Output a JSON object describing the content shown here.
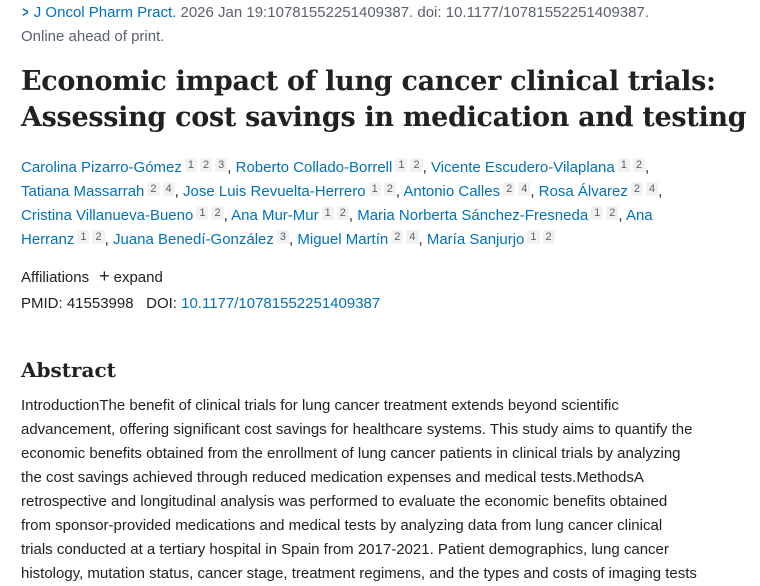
{
  "citation": {
    "journal": "J Oncol Pharm Pract.",
    "details": " 2026 Jan 19:10781552251409387. doi: 10.1177/10781552251409387.",
    "status": "Online ahead of print."
  },
  "title": "Economic impact of lung cancer clinical trials: Assessing cost savings in medication and testing",
  "authors": [
    {
      "name": "Carolina Pizarro-Gómez",
      "aff": [
        "1",
        "2",
        "3"
      ]
    },
    {
      "name": "Roberto Collado-Borrell",
      "aff": [
        "1",
        "2"
      ]
    },
    {
      "name": "Vicente Escudero-Vilaplana",
      "aff": [
        "1",
        "2"
      ]
    },
    {
      "name": "Tatiana Massarrah",
      "aff": [
        "2",
        "4"
      ]
    },
    {
      "name": "Jose Luis Revuelta-Herrero",
      "aff": [
        "1",
        "2"
      ]
    },
    {
      "name": "Antonio Calles",
      "aff": [
        "2",
        "4"
      ]
    },
    {
      "name": "Rosa Álvarez",
      "aff": [
        "2",
        "4"
      ]
    },
    {
      "name": "Cristina Villanueva-Bueno",
      "aff": [
        "1",
        "2"
      ]
    },
    {
      "name": "Ana Mur-Mur",
      "aff": [
        "1",
        "2"
      ]
    },
    {
      "name": "Maria Norberta Sánchez-Fresneda",
      "aff": [
        "1",
        "2"
      ]
    },
    {
      "name": "Ana Herranz",
      "aff": [
        "1",
        "2"
      ]
    },
    {
      "name": "Juana Benedí-González",
      "aff": [
        "3"
      ]
    },
    {
      "name": "Miguel Martín",
      "aff": [
        "2",
        "4"
      ]
    },
    {
      "name": "María Sanjurjo",
      "aff": [
        "1",
        "2"
      ]
    }
  ],
  "affiliations": {
    "label": "Affiliations",
    "expand": "expand"
  },
  "ids": {
    "pmid_label": "PMID:",
    "pmid": "41553998",
    "doi_label": "DOI:",
    "doi": "10.1177/10781552251409387"
  },
  "abstract": {
    "heading": "Abstract",
    "lines": [
      "IntroductionThe benefit of clinical trials for lung cancer treatment extends beyond scientific",
      "advancement, offering significant cost savings for healthcare systems. This study aims to quantify the",
      "economic benefits obtained from the enrollment of lung cancer patients in clinical trials by analyzing",
      "the cost savings achieved through reduced medication expenses and medical tests.MethodsA",
      "retrospective and longitudinal analysis was performed to evaluate the economic benefits obtained",
      "from sponsor-provided medications and medical tests by analyzing data from lung cancer clinical",
      "trials conducted at a tertiary hospital in Spain from 2017-2021. Patient demographics, lung cancer",
      "histology, mutation status, cancer stage, treatment regimens, and the types and costs of imaging tests"
    ]
  }
}
